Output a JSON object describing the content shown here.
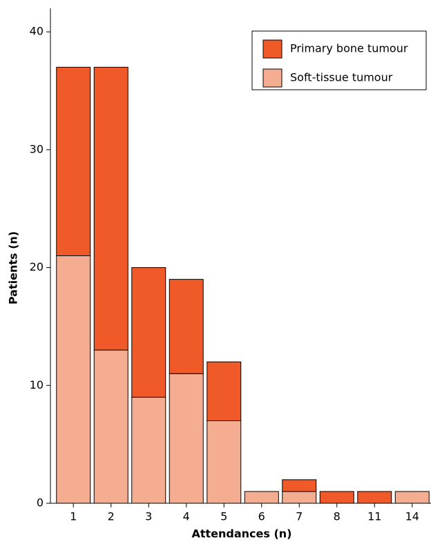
{
  "chart_data": {
    "type": "stacked-bar",
    "x_label": "Attendances (n)",
    "y_label": "Patients (n)",
    "categories": [
      "1",
      "2",
      "3",
      "4",
      "5",
      "6",
      "7",
      "8",
      "11",
      "14"
    ],
    "series": [
      {
        "name": "Primary bone tumour",
        "color": "#f05a28",
        "values": [
          16,
          24,
          11,
          8,
          5,
          0,
          1,
          1,
          1,
          0
        ]
      },
      {
        "name": "Soft-tissue tumour",
        "color": "#f5ad91",
        "values": [
          21,
          13,
          9,
          11,
          7,
          1,
          1,
          0,
          0,
          1
        ]
      }
    ],
    "ylim": [
      0,
      42
    ],
    "yticks": [
      0,
      10,
      20,
      30,
      40
    ],
    "legend": "top-right"
  }
}
